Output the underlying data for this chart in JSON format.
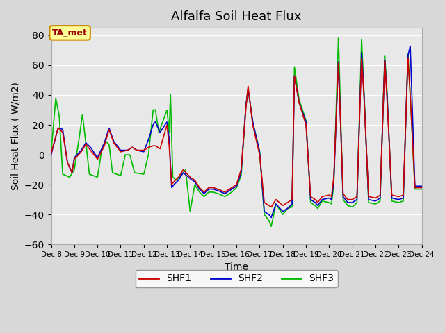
{
  "title": "Alfalfa Soil Heat Flux",
  "xlabel": "Time",
  "ylabel": "Soil Heat Flux ( W/m2)",
  "ylim": [
    -60,
    85
  ],
  "yticks": [
    -60,
    -40,
    -20,
    0,
    20,
    40,
    60,
    80
  ],
  "bg_color": "#e8e8e8",
  "plot_bg_color": "#e8e8e8",
  "annotation_text": "TA_met",
  "annotation_bg": "#ffff99",
  "annotation_border": "#cc8800",
  "annotation_text_color": "#990000",
  "shf1_color": "#cc0000",
  "shf2_color": "#0000cc",
  "shf3_color": "#00bb00",
  "legend_labels": [
    "SHF1",
    "SHF2",
    "SHF3"
  ],
  "x_start": 8.0,
  "x_end": 24.0,
  "xtick_positions": [
    8,
    9,
    10,
    11,
    12,
    13,
    14,
    15,
    16,
    17,
    18,
    19,
    20,
    21,
    22,
    23,
    24
  ],
  "xtick_labels": [
    "Dec 8",
    "Dec 9",
    "Dec 10",
    "Dec 11",
    "Dec 12",
    "Dec 13",
    "Dec 14",
    "Dec 15",
    "Dec 16",
    "Dec 17",
    "Dec 18",
    "Dec 19",
    "Dec 20",
    "Dec 21",
    "Dec 22",
    "Dec 23",
    "Dec 24"
  ]
}
